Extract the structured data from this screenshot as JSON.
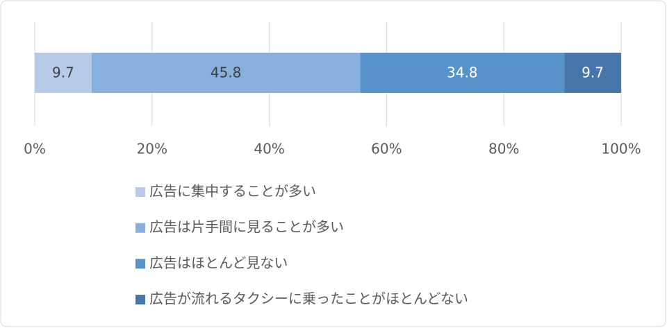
{
  "chart_data": {
    "type": "bar",
    "orientation": "horizontal",
    "stacked": true,
    "categories": [
      null
    ],
    "series": [
      {
        "name": "広告に集中することが多い",
        "color": "#b7cbe8",
        "values": [
          9.7
        ]
      },
      {
        "name": "広告は片手間に見ることが多い",
        "color": "#89afdc",
        "values": [
          45.8
        ]
      },
      {
        "name": "広告はほとんど見ない",
        "color": "#5693cb",
        "values": [
          34.8
        ]
      },
      {
        "name": "広告が流れるタクシーに乗ったことがほとんどない",
        "color": "#4776a8",
        "values": [
          9.7
        ]
      }
    ],
    "xlim": [
      0,
      100
    ],
    "xticks": [
      {
        "value": 0,
        "label": "0%"
      },
      {
        "value": 20,
        "label": "20%"
      },
      {
        "value": 40,
        "label": "40%"
      },
      {
        "value": 60,
        "label": "60%"
      },
      {
        "value": 80,
        "label": "80%"
      },
      {
        "value": 100,
        "label": "100%"
      }
    ],
    "grid": true
  }
}
